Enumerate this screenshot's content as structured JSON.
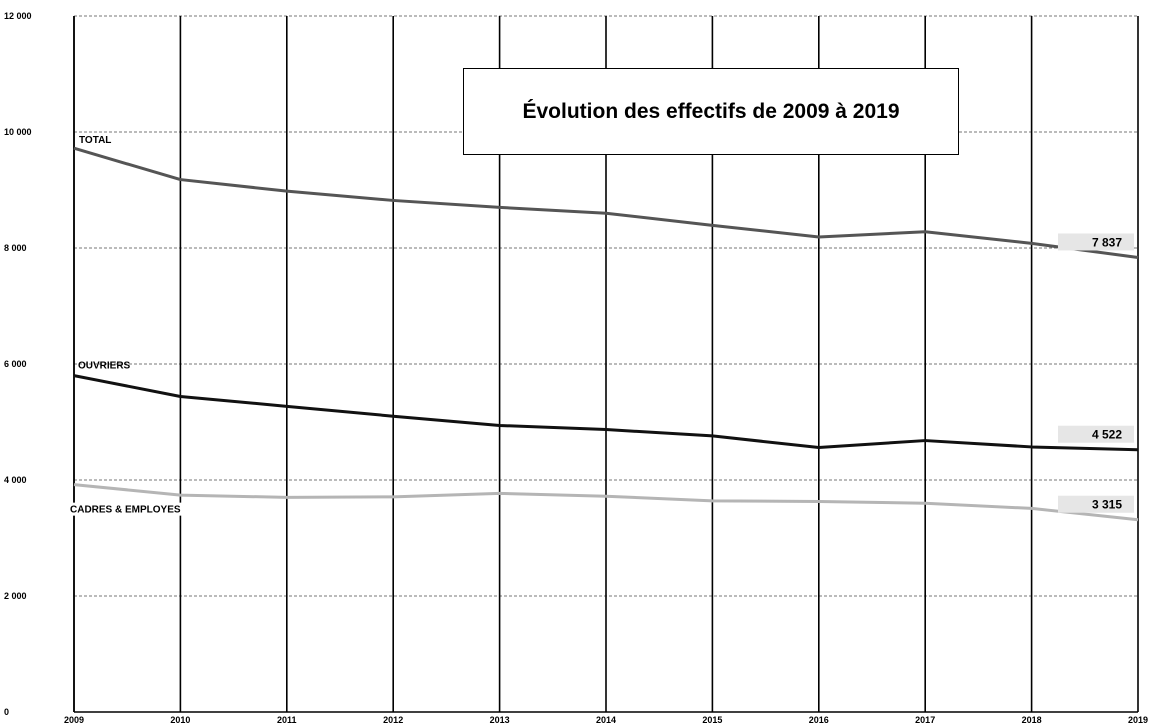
{
  "chart_data": {
    "type": "line",
    "title": "Évolution des effectifs de 2009 à 2019",
    "x": [
      "2009",
      "2010",
      "2011",
      "2012",
      "2013",
      "2014",
      "2015",
      "2016",
      "2017",
      "2018",
      "2019"
    ],
    "ylim": [
      0,
      12000
    ],
    "yticks": [
      0,
      2000,
      4000,
      6000,
      8000,
      10000,
      12000
    ],
    "ytick_labels": [
      "0",
      "2 000",
      "4 000",
      "6 000",
      "8 000",
      "10 000",
      "12 000"
    ],
    "grid": true,
    "series": [
      {
        "name": "TOTAL",
        "color": "#555555",
        "values": [
          9720,
          9180,
          8980,
          8820,
          8700,
          8600,
          8390,
          8190,
          8280,
          8080,
          7837
        ],
        "end_label": "7 837"
      },
      {
        "name": "OUVRIERS",
        "color": "#111111",
        "values": [
          5800,
          5440,
          5270,
          5100,
          4940,
          4870,
          4760,
          4560,
          4680,
          4570,
          4522
        ],
        "end_label": "4 522"
      },
      {
        "name": "CADRES & EMPLOYES",
        "color": "#b5b5b5",
        "values": [
          3920,
          3740,
          3700,
          3710,
          3770,
          3720,
          3640,
          3630,
          3600,
          3510,
          3315
        ],
        "end_label": "3 315"
      }
    ]
  }
}
